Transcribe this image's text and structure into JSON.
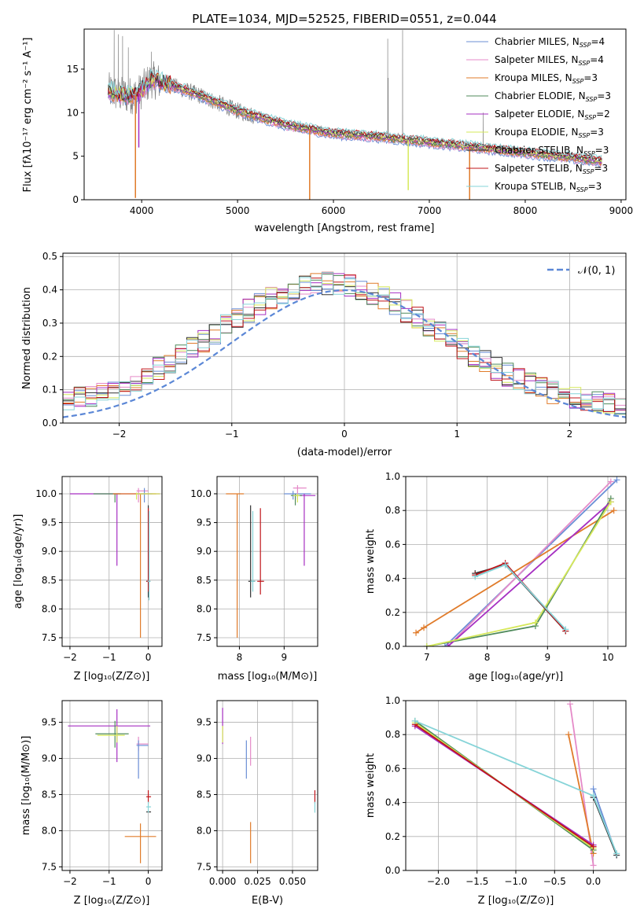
{
  "figure_title": "PLATE=1034, MJD=52525, FIBERID=0551, z=0.044",
  "colors": {
    "Chabrier MILES": "#6b8fd6",
    "Salpeter MILES": "#e58ac8",
    "Kroupa MILES": "#e07b2a",
    "Chabrier ELODIE": "#4f8a5b",
    "Salpeter ELODIE": "#a62fc2",
    "Kroupa ELODIE": "#d6e85a",
    "Chabrier STELIB": "#333333",
    "Salpeter STELIB": "#c0151a",
    "Kroupa STELIB": "#86d4d8",
    "data": "#808080",
    "normal": "#5b87d6"
  },
  "chart_data": [
    {
      "id": "spectrum",
      "type": "line",
      "title": "PLATE=1034, MJD=52525, FIBERID=0551, z=0.044",
      "xlabel": "wavelength [Angstrom, rest frame]",
      "ylabel": "Flux [fλ10⁻¹⁷ erg cm⁻² s⁻¹ A⁻¹]",
      "xlim": [
        3400,
        9050
      ],
      "ylim": [
        0,
        19.6
      ],
      "xticks": [
        4000,
        5000,
        6000,
        7000,
        8000,
        9000
      ],
      "yticks": [
        0,
        5,
        10,
        15
      ],
      "legend_position": "top-right",
      "legend": [
        {
          "name": "Chabrier MILES, N",
          "sub": "SSP",
          "suffix": "=4",
          "color_key": "Chabrier MILES"
        },
        {
          "name": "Salpeter MILES, N",
          "sub": "SSP",
          "suffix": "=4",
          "color_key": "Salpeter MILES"
        },
        {
          "name": "Kroupa MILES, N",
          "sub": "SSP",
          "suffix": "=3",
          "color_key": "Kroupa MILES"
        },
        {
          "name": "Chabrier ELODIE, N",
          "sub": "SSP",
          "suffix": "=3",
          "color_key": "Chabrier ELODIE"
        },
        {
          "name": "Salpeter ELODIE, N",
          "sub": "SSP",
          "suffix": "=2",
          "color_key": "Salpeter ELODIE"
        },
        {
          "name": "Kroupa ELODIE, N",
          "sub": "SSP",
          "suffix": "=3",
          "color_key": "Kroupa ELODIE"
        },
        {
          "name": "Chabrier STELIB, N",
          "sub": "SSP",
          "suffix": "=3",
          "color_key": "Chabrier STELIB"
        },
        {
          "name": "Salpeter STELIB, N",
          "sub": "SSP",
          "suffix": "=3",
          "color_key": "Salpeter STELIB"
        },
        {
          "name": "Kroupa STELIB, N",
          "sub": "SSP",
          "suffix": "=3",
          "color_key": "Kroupa STELIB"
        }
      ],
      "continuum": {
        "x": [
          3650,
          3800,
          3950,
          4100,
          4300,
          4600,
          5000,
          5500,
          6000,
          6500,
          7000,
          7500,
          8000,
          8500,
          8800
        ],
        "y": [
          12.5,
          12.0,
          12.0,
          13.8,
          13.2,
          12.0,
          10.2,
          8.6,
          7.6,
          7.2,
          6.6,
          6.0,
          5.4,
          4.8,
          4.4
        ]
      },
      "dips": [
        {
          "x": 3935,
          "y": 0.2,
          "color_key": "Kroupa MILES"
        },
        {
          "x": 3970,
          "y": 6.0,
          "color_key": "Salpeter ELODIE"
        },
        {
          "x": 5752,
          "y": 0.0,
          "color_key": "Kroupa MILES"
        },
        {
          "x": 6780,
          "y": 1.1,
          "color_key": "Kroupa ELODIE"
        },
        {
          "x": 7420,
          "y": 0.0,
          "color_key": "Kroupa MILES"
        }
      ],
      "emission_peaks": [
        {
          "x": 3712,
          "y": 19.5
        },
        {
          "x": 3755,
          "y": 19.0
        },
        {
          "x": 3800,
          "y": 18.8
        },
        {
          "x": 3860,
          "y": 17.5
        },
        {
          "x": 4100,
          "y": 17.0
        },
        {
          "x": 6565,
          "y": 18.5
        },
        {
          "x": 6720,
          "y": 19.5
        },
        {
          "x": 6570,
          "y": 14.0
        },
        {
          "x": 7560,
          "y": 10.0
        }
      ]
    },
    {
      "id": "residuals",
      "type": "line",
      "xlabel": "(data-model)/error",
      "ylabel": "Normed distribution",
      "xlim": [
        -2.5,
        2.5
      ],
      "ylim": [
        0,
        0.51
      ],
      "xticks": [
        -2,
        -1,
        0,
        1,
        2
      ],
      "yticks": [
        0.0,
        0.1,
        0.2,
        0.3,
        0.4,
        0.5
      ],
      "ytick_labels": [
        "0.0",
        "0.1",
        "0.2",
        "0.3",
        "0.4",
        "0.5"
      ],
      "grid": true,
      "legend_position": "top-right",
      "legend": [
        "𝒩(0, 1)"
      ],
      "bin_width": 0.1
    },
    {
      "id": "age-vs-Z",
      "type": "scatter",
      "xlabel": "Z [log₁₀(Z/Z⊙)]",
      "ylabel": "age  [log₁₀(age/yr)]",
      "xlim": [
        -2.2,
        0.35
      ],
      "ylim": [
        7.35,
        10.3
      ],
      "xticks": [
        -2,
        -1,
        0
      ],
      "yticks": [
        7.5,
        8.0,
        8.5,
        9.0,
        9.5,
        10.0
      ],
      "grid": true
    },
    {
      "id": "age-vs-mass",
      "type": "scatter",
      "xlabel": "mass [log₁₀(M/M⊙)]",
      "xlim": [
        7.5,
        9.75
      ],
      "ylim": [
        7.35,
        10.3
      ],
      "xticks": [
        8,
        9
      ],
      "yticks": [
        7.5,
        8.0,
        8.5,
        9.0,
        9.5,
        10.0
      ],
      "grid": true
    },
    {
      "id": "massweight-vs-age",
      "type": "line",
      "xlabel": "age  [log₁₀(age/yr)]",
      "ylabel": "mass weight",
      "xlim": [
        6.65,
        10.3
      ],
      "ylim": [
        0,
        1.0
      ],
      "xticks": [
        7,
        8,
        9,
        10
      ],
      "yticks": [
        0.0,
        0.2,
        0.4,
        0.6,
        0.8,
        1.0
      ],
      "grid": true
    },
    {
      "id": "mass-vs-Z",
      "type": "scatter",
      "xlabel": "Z [log₁₀(Z/Z⊙)]",
      "ylabel": "mass [log₁₀(M/M⊙)]",
      "xlim": [
        -2.2,
        0.35
      ],
      "ylim": [
        7.45,
        9.8
      ],
      "xticks": [
        -2,
        -1,
        0
      ],
      "yticks": [
        7.5,
        8.0,
        8.5,
        9.0,
        9.5
      ],
      "grid": true
    },
    {
      "id": "mass-vs-EBV",
      "type": "scatter",
      "xlabel": "E(B-V)",
      "xlim": [
        -0.004,
        0.068
      ],
      "ylim": [
        7.45,
        9.8
      ],
      "xticks": [
        0.0,
        0.025,
        0.05
      ],
      "xtick_labels": [
        "0.000",
        "0.025",
        "0.050"
      ],
      "yticks": [
        7.5,
        8.0,
        8.5,
        9.0,
        9.5
      ],
      "grid": true
    },
    {
      "id": "massweight-vs-Z",
      "type": "line",
      "xlabel": "Z [log₁₀(Z/Z⊙)]",
      "ylabel": "mass weight",
      "xlim": [
        -2.42,
        0.42
      ],
      "ylim": [
        0,
        1.0
      ],
      "xticks": [
        -2.0,
        -1.5,
        -1.0,
        -0.5,
        0.0
      ],
      "xtick_labels": [
        "−2.0",
        "−1.5",
        "−1.0",
        "−0.5",
        "0.0"
      ],
      "yticks": [
        0.0,
        0.2,
        0.4,
        0.6,
        0.8,
        1.0
      ],
      "grid": true
    }
  ]
}
